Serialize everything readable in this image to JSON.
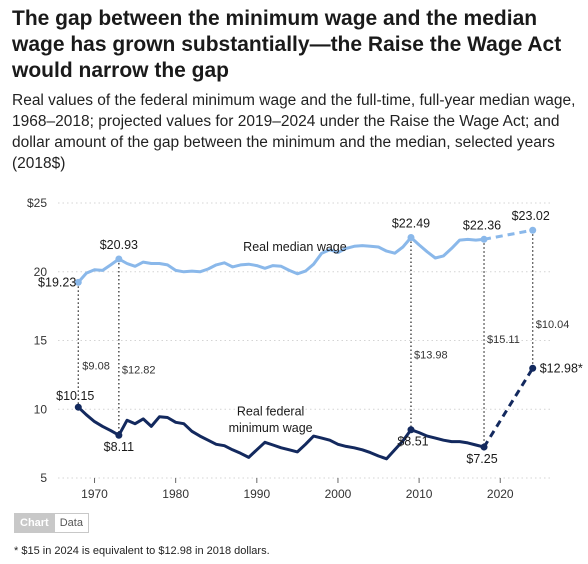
{
  "title": "The gap between the minimum wage and the median wage has grown substantially—the Raise the Wage Act would narrow the gap",
  "subtitle": "Real values of the federal minimum wage and the full-time, full-year median wage, 1968–2018; projected values for 2019–2024 under the Raise the Wage Act; and dollar amount of the gap between the minimum and the median, selected years (2018$)",
  "tabs": {
    "chart": "Chart",
    "data": "Data"
  },
  "note": "* $15 in 2024 is equivalent to $12.98 in 2018 dollars.",
  "colors": {
    "median": "#8ab8ea",
    "minimum": "#13295e",
    "gap_line": "#333333",
    "grid": "#d4d4d4"
  },
  "chart_data": {
    "type": "line",
    "ylim": [
      5,
      25
    ],
    "xlim": [
      1965.5,
      2026.5
    ],
    "y_ticks": [
      5,
      10,
      15,
      20,
      25
    ],
    "y_tick_labels": [
      "5",
      "10",
      "15",
      "20",
      "$25"
    ],
    "x_ticks": [
      1970,
      1980,
      1990,
      2000,
      2010,
      2020
    ],
    "x_tick_labels": [
      "1970",
      "1980",
      "1990",
      "2000",
      "2010",
      "2020"
    ],
    "grid": "horizontal dotted",
    "series": [
      {
        "name": "Real median wage",
        "x": [
          1968,
          1969,
          1970,
          1971,
          1972,
          1973,
          1974,
          1975,
          1976,
          1977,
          1978,
          1979,
          1980,
          1981,
          1982,
          1983,
          1984,
          1985,
          1986,
          1987,
          1988,
          1989,
          1990,
          1991,
          1992,
          1993,
          1994,
          1995,
          1996,
          1997,
          1998,
          1999,
          2000,
          2001,
          2002,
          2003,
          2004,
          2005,
          2006,
          2007,
          2008,
          2009,
          2010,
          2011,
          2012,
          2013,
          2014,
          2015,
          2016,
          2017,
          2018
        ],
        "values": [
          19.23,
          19.9,
          20.15,
          20.1,
          20.5,
          20.93,
          20.6,
          20.4,
          20.7,
          20.6,
          20.6,
          20.5,
          20.1,
          20.0,
          20.05,
          20.0,
          20.2,
          20.5,
          20.65,
          20.35,
          20.5,
          20.55,
          20.45,
          20.25,
          20.45,
          20.4,
          20.1,
          19.85,
          20.05,
          20.55,
          21.35,
          21.6,
          21.4,
          21.7,
          21.85,
          21.9,
          21.85,
          21.8,
          21.5,
          21.35,
          21.8,
          22.49,
          21.95,
          21.45,
          21.0,
          21.15,
          21.7,
          22.3,
          22.35,
          22.3,
          22.36
        ],
        "style": "solid"
      },
      {
        "name": "Real median wage (projected)",
        "x": [
          2018,
          2024
        ],
        "values": [
          22.36,
          23.02
        ],
        "style": "dashed"
      },
      {
        "name": "Real federal minimum wage",
        "x": [
          1968,
          1969,
          1970,
          1971,
          1972,
          1973,
          1974,
          1975,
          1976,
          1977,
          1978,
          1979,
          1980,
          1981,
          1982,
          1983,
          1984,
          1985,
          1986,
          1987,
          1988,
          1989,
          1990,
          1991,
          1992,
          1993,
          1994,
          1995,
          1996,
          1997,
          1998,
          1999,
          2000,
          2001,
          2002,
          2003,
          2004,
          2005,
          2006,
          2007,
          2008,
          2009,
          2010,
          2011,
          2012,
          2013,
          2014,
          2015,
          2016,
          2017,
          2018
        ],
        "values": [
          10.15,
          9.6,
          9.1,
          8.75,
          8.45,
          8.11,
          9.2,
          8.95,
          9.3,
          8.75,
          9.45,
          9.4,
          9.05,
          8.95,
          8.4,
          8.05,
          7.75,
          7.45,
          7.35,
          7.05,
          6.8,
          6.5,
          7.05,
          7.6,
          7.4,
          7.2,
          7.05,
          6.9,
          7.45,
          8.05,
          7.9,
          7.75,
          7.45,
          7.3,
          7.2,
          7.05,
          6.85,
          6.6,
          6.4,
          7.05,
          7.7,
          8.51,
          8.3,
          8.05,
          7.9,
          7.75,
          7.65,
          7.65,
          7.55,
          7.4,
          7.25
        ],
        "style": "solid"
      },
      {
        "name": "Real federal minimum wage (projected)",
        "x": [
          2018,
          2024
        ],
        "values": [
          7.25,
          12.98
        ],
        "style": "dashed"
      }
    ],
    "gaps": [
      {
        "year": 1968,
        "label": "$9.08"
      },
      {
        "year": 1973,
        "label": "$12.82"
      },
      {
        "year": 2009,
        "label": "$13.98"
      },
      {
        "year": 2018,
        "label": "$15.11"
      },
      {
        "year": 2024,
        "label": "$10.04"
      }
    ],
    "series_labels": [
      {
        "text": "Real median wage"
      },
      {
        "text": "Real federal"
      },
      {
        "text": "minimum wage"
      }
    ],
    "point_labels": [
      {
        "text": "$19.23"
      },
      {
        "text": "$20.93"
      },
      {
        "text": "$22.49"
      },
      {
        "text": "$22.36"
      },
      {
        "text": "$23.02"
      },
      {
        "text": "$10.15"
      },
      {
        "text": "$8.11"
      },
      {
        "text": "$8.51"
      },
      {
        "text": "$7.25"
      },
      {
        "text": "$12.98*"
      }
    ]
  }
}
